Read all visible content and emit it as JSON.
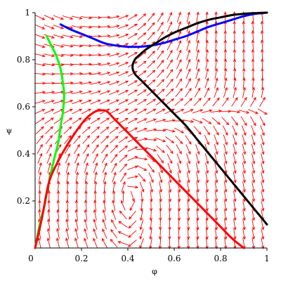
{
  "chart_data": {
    "type": "line",
    "subtype": "phase-portrait-direction-field",
    "xlabel": "φ",
    "ylabel": "ψ",
    "xlim": [
      0,
      1
    ],
    "ylim": [
      0,
      1
    ],
    "x_ticks": [
      "0",
      "0.2",
      "0.4",
      "0.6",
      "0.8",
      "1"
    ],
    "x_tick_values": [
      0,
      0.2,
      0.4,
      0.6,
      0.8,
      1
    ],
    "y_ticks": [
      "0.2",
      "0.4",
      "0.6",
      "0.8",
      "1"
    ],
    "y_tick_values": [
      0.2,
      0.4,
      0.6,
      0.8,
      1
    ],
    "grid": false,
    "legend": "none",
    "direction_field": {
      "color": "#ff0000",
      "x_samples": 25,
      "y_samples": 25
    },
    "series": [
      {
        "color": "#0000ff",
        "x": [
          0.11,
          0.15,
          0.2,
          0.25,
          0.3,
          0.35,
          0.4,
          0.45,
          0.5,
          0.55,
          0.6,
          0.65,
          0.7,
          0.75,
          0.8,
          0.85,
          0.9,
          0.95,
          1.0
        ],
        "y": [
          0.95,
          0.93,
          0.91,
          0.89,
          0.87,
          0.86,
          0.855,
          0.855,
          0.86,
          0.87,
          0.885,
          0.9,
          0.92,
          0.94,
          0.955,
          0.97,
          0.985,
          0.995,
          1.0
        ]
      },
      {
        "color": "#000000",
        "x": [
          1.0,
          0.95,
          0.9,
          0.85,
          0.8,
          0.75,
          0.7,
          0.65,
          0.6,
          0.55,
          0.5,
          0.46,
          0.43,
          0.42,
          0.43,
          0.45,
          0.48,
          0.52,
          0.56,
          0.6,
          0.65,
          0.7,
          0.75,
          0.8,
          0.85,
          0.9,
          0.95,
          1.0
        ],
        "y": [
          0.1,
          0.16,
          0.22,
          0.28,
          0.34,
          0.4,
          0.46,
          0.52,
          0.57,
          0.62,
          0.67,
          0.71,
          0.74,
          0.77,
          0.8,
          0.82,
          0.845,
          0.87,
          0.895,
          0.915,
          0.935,
          0.955,
          0.97,
          0.98,
          0.99,
          0.995,
          0.998,
          1.0
        ]
      },
      {
        "color": "#00ff00",
        "x": [
          0.0,
          0.02,
          0.04,
          0.06,
          0.08,
          0.1,
          0.11,
          0.12,
          0.125,
          0.12,
          0.11,
          0.09,
          0.07,
          0.05
        ],
        "y": [
          0.0,
          0.1,
          0.18,
          0.28,
          0.37,
          0.45,
          0.52,
          0.58,
          0.65,
          0.7,
          0.76,
          0.82,
          0.86,
          0.9
        ]
      },
      {
        "color": "#ff0000",
        "x": [
          0.0,
          0.03,
          0.06,
          0.1,
          0.14,
          0.18,
          0.22,
          0.26,
          0.29,
          0.31,
          0.34,
          0.38,
          0.42,
          0.46,
          0.5,
          0.55,
          0.6,
          0.65,
          0.7,
          0.75,
          0.8,
          0.85,
          0.9
        ],
        "y": [
          0.0,
          0.13,
          0.28,
          0.37,
          0.44,
          0.5,
          0.55,
          0.58,
          0.585,
          0.58,
          0.55,
          0.51,
          0.47,
          0.43,
          0.39,
          0.34,
          0.29,
          0.24,
          0.19,
          0.14,
          0.09,
          0.04,
          0.0
        ]
      }
    ]
  }
}
